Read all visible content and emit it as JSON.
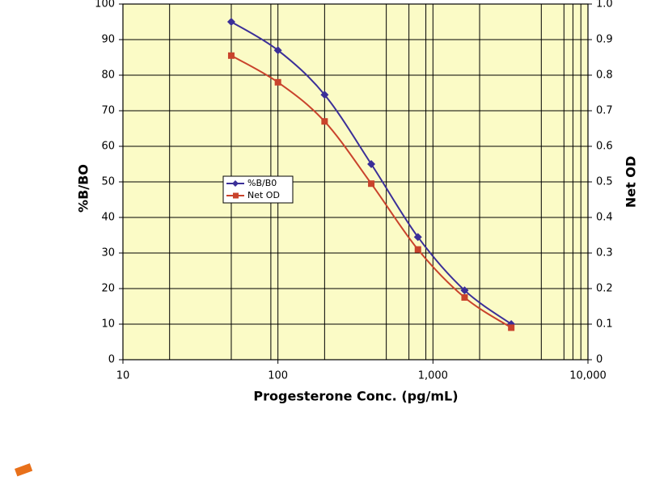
{
  "chart_data": {
    "type": "line",
    "x_label": "Progesterone Conc. (pg/mL)",
    "y_label": "%B/BO",
    "y2_label": "Net OD",
    "x_scale": "log",
    "x": [
      50,
      100,
      200,
      400,
      800,
      1600,
      3200
    ],
    "series": [
      {
        "name": "%B/B0",
        "color": "#3b2f98",
        "marker": "diamond",
        "values": [
          95,
          87,
          74.5,
          55,
          34.5,
          19.5,
          10
        ]
      },
      {
        "name": "Net OD",
        "color": "#c9432c",
        "marker": "square",
        "axis": "y2",
        "values": [
          0.855,
          0.78,
          0.67,
          0.495,
          0.31,
          0.175,
          0.09
        ]
      }
    ],
    "xlim": [
      10,
      10000
    ],
    "xticks": [
      10,
      100,
      {
        "value": 1000,
        "label": "1,000"
      },
      {
        "value": 10000,
        "label": "10,000"
      }
    ],
    "x_grid_lines": [
      20,
      50,
      90,
      200,
      500,
      700,
      900,
      2000,
      5000,
      7000,
      8000,
      9000
    ],
    "ylim": [
      0,
      100
    ],
    "yticks": [
      0,
      10,
      20,
      30,
      40,
      50,
      60,
      70,
      80,
      90,
      100
    ],
    "y2lim": [
      0,
      1
    ],
    "y2ticks": [
      0,
      0.1,
      0.2,
      0.3,
      0.4,
      0.5,
      0.6,
      0.7,
      0.8,
      0.9,
      {
        "value": 1,
        "label": "1.0"
      }
    ],
    "grid": true,
    "legend": "center-left",
    "plot_background": "#fbfbc6"
  }
}
